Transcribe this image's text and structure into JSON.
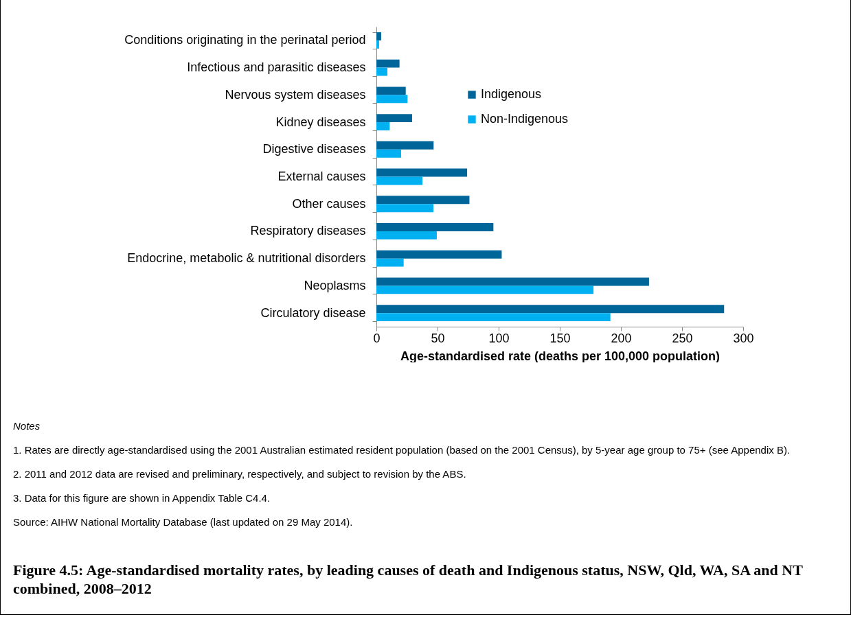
{
  "chart_data": {
    "type": "bar",
    "orientation": "horizontal",
    "title": "Figure 4.5: Age-standardised mortality rates, by leading causes of death and Indigenous status, NSW, Qld, WA, SA and NT combined, 2008–2012",
    "xlabel": "Age-standardised rate  (deaths per 100,000 population)",
    "categories": [
      "Conditions originating in the perinatal period",
      "Infectious and parasitic diseases",
      "Nervous system diseases",
      "Kidney diseases",
      "Digestive diseases",
      "External causes",
      "Other causes",
      "Respiratory diseases",
      "Endocrine, metabolic & nutritional disorders",
      "Neoplasms",
      "Circulatory disease"
    ],
    "series": [
      {
        "name": "Indigenous",
        "color": "#006699",
        "values": [
          3.9,
          18.9,
          24.0,
          29.2,
          46.8,
          74.2,
          76.1,
          95.7,
          102.5,
          223.0,
          284.4
        ]
      },
      {
        "name": "Non-Indigenous",
        "color": "#00b0f0",
        "values": [
          2.2,
          9.0,
          25.5,
          10.9,
          20.2,
          37.7,
          46.7,
          49.4,
          22.3,
          177.6,
          191.4
        ]
      }
    ],
    "xlim": [
      0,
      300
    ],
    "xticks": [
      0,
      50,
      100,
      150,
      200,
      250,
      300
    ],
    "grid": false,
    "legend": "top",
    "annotations": [
      "Notes",
      "1.  Rates are directly age-standardised using the 2001 Australian estimated resident population (based on the 2001 Census), by 5-year age group to 75+ (see Appendix B).",
      "2.  2011 and 2012 data are revised and preliminary, respectively, and subject to revision by the ABS.",
      "3.  Data for this figure are shown in Appendix Table C4.4.",
      "Source: AIHW National Mortality Database (last updated on 29 May 2014)."
    ]
  }
}
